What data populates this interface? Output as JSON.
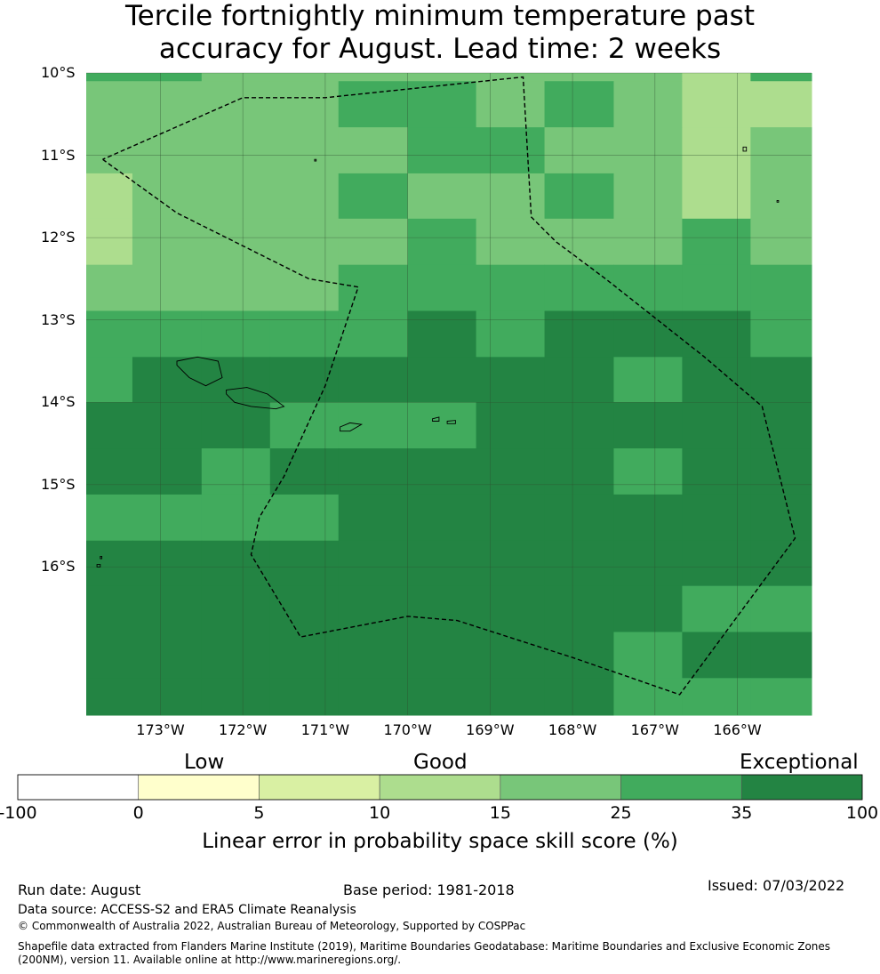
{
  "title": {
    "line1": "Tercile fortnightly minimum temperature past",
    "line2": "accuracy for August. Lead time: 2 weeks"
  },
  "map": {
    "lon_range": [
      -173.9,
      -165.1
    ],
    "lat_range": [
      -17.8,
      -10.0
    ],
    "lat_ticks": [
      {
        "value": -10,
        "label": "10°S"
      },
      {
        "value": -11,
        "label": "11°S"
      },
      {
        "value": -12,
        "label": "12°S"
      },
      {
        "value": -13,
        "label": "13°S"
      },
      {
        "value": -14,
        "label": "14°S"
      },
      {
        "value": -15,
        "label": "15°S"
      },
      {
        "value": -16,
        "label": "16°S"
      }
    ],
    "lon_ticks": [
      {
        "value": -173,
        "label": "173°W"
      },
      {
        "value": -172,
        "label": "172°W"
      },
      {
        "value": -171,
        "label": "171°W"
      },
      {
        "value": -170,
        "label": "170°W"
      },
      {
        "value": -169,
        "label": "169°W"
      },
      {
        "value": -168,
        "label": "168°W"
      },
      {
        "value": -167,
        "label": "167°W"
      },
      {
        "value": -166,
        "label": "166°W"
      }
    ],
    "grid_lines": true,
    "cell_lon_edges": [
      -173.9,
      -173.34,
      -172.5,
      -171.67,
      -170.84,
      -170.0,
      -169.17,
      -168.34,
      -167.5,
      -166.67,
      -165.84,
      -165.1
    ],
    "cell_lat_edges": [
      -10.0,
      -10.1,
      -10.66,
      -11.22,
      -11.77,
      -12.33,
      -12.89,
      -13.45,
      -14.0,
      -14.56,
      -15.12,
      -15.68,
      -16.23,
      -16.79,
      -17.35,
      -17.8
    ],
    "skill_grid": [
      [
        25,
        25,
        15,
        15,
        15,
        15,
        15,
        15,
        15,
        10,
        25
      ],
      [
        15,
        15,
        15,
        15,
        25,
        25,
        15,
        25,
        15,
        10,
        10
      ],
      [
        15,
        15,
        15,
        15,
        15,
        25,
        25,
        15,
        15,
        10,
        15
      ],
      [
        10,
        15,
        15,
        15,
        25,
        15,
        15,
        25,
        15,
        10,
        15
      ],
      [
        10,
        15,
        15,
        15,
        15,
        25,
        15,
        15,
        15,
        25,
        15
      ],
      [
        15,
        15,
        15,
        15,
        25,
        25,
        25,
        25,
        25,
        25,
        25
      ],
      [
        25,
        25,
        25,
        25,
        25,
        35,
        25,
        35,
        35,
        35,
        25
      ],
      [
        25,
        35,
        35,
        35,
        35,
        35,
        35,
        35,
        25,
        35,
        35
      ],
      [
        35,
        35,
        35,
        25,
        25,
        25,
        35,
        35,
        35,
        35,
        35
      ],
      [
        35,
        35,
        25,
        35,
        35,
        35,
        35,
        35,
        25,
        35,
        35
      ],
      [
        25,
        25,
        25,
        25,
        35,
        35,
        35,
        35,
        35,
        35,
        35
      ],
      [
        35,
        35,
        35,
        35,
        35,
        35,
        35,
        35,
        35,
        35,
        35
      ],
      [
        35,
        35,
        35,
        35,
        35,
        35,
        35,
        35,
        35,
        25,
        25
      ],
      [
        35,
        35,
        35,
        35,
        35,
        35,
        35,
        35,
        25,
        35,
        35
      ],
      [
        35,
        35,
        35,
        35,
        35,
        35,
        35,
        35,
        25,
        25,
        25
      ]
    ],
    "eez_boundary": [
      [
        -173.7,
        -11.05
      ],
      [
        -172.8,
        -11.7
      ],
      [
        -171.2,
        -12.5
      ],
      [
        -170.6,
        -12.6
      ],
      [
        -171.0,
        -13.8
      ],
      [
        -171.5,
        -14.9
      ],
      [
        -171.8,
        -15.4
      ],
      [
        -171.9,
        -15.85
      ],
      [
        -171.3,
        -16.85
      ],
      [
        -170.0,
        -16.6
      ],
      [
        -169.4,
        -16.65
      ],
      [
        -168.0,
        -17.1
      ],
      [
        -166.7,
        -17.55
      ],
      [
        -165.3,
        -15.65
      ],
      [
        -165.7,
        -14.05
      ],
      [
        -166.4,
        -13.45
      ],
      [
        -167.6,
        -12.5
      ],
      [
        -168.2,
        -12.05
      ],
      [
        -168.5,
        -11.75
      ],
      [
        -168.6,
        -10.05
      ],
      [
        -171.0,
        -10.3
      ],
      [
        -172.0,
        -10.3
      ],
      [
        -173.7,
        -11.05
      ]
    ],
    "islands": [
      [
        [
          -172.8,
          -13.5
        ],
        [
          -172.55,
          -13.45
        ],
        [
          -172.3,
          -13.5
        ],
        [
          -172.25,
          -13.7
        ],
        [
          -172.45,
          -13.8
        ],
        [
          -172.65,
          -13.7
        ],
        [
          -172.8,
          -13.55
        ]
      ],
      [
        [
          -172.2,
          -13.85
        ],
        [
          -171.95,
          -13.82
        ],
        [
          -171.7,
          -13.9
        ],
        [
          -171.5,
          -14.05
        ],
        [
          -171.6,
          -14.08
        ],
        [
          -171.9,
          -14.05
        ],
        [
          -172.1,
          -14.0
        ],
        [
          -172.2,
          -13.9
        ]
      ],
      [
        [
          -170.82,
          -14.3
        ],
        [
          -170.7,
          -14.25
        ],
        [
          -170.56,
          -14.27
        ],
        [
          -170.7,
          -14.35
        ],
        [
          -170.82,
          -14.35
        ]
      ],
      [
        [
          -169.7,
          -14.2
        ],
        [
          -169.62,
          -14.18
        ],
        [
          -169.62,
          -14.23
        ],
        [
          -169.7,
          -14.23
        ]
      ],
      [
        [
          -169.52,
          -14.23
        ],
        [
          -169.42,
          -14.22
        ],
        [
          -169.42,
          -14.26
        ],
        [
          -169.52,
          -14.26
        ]
      ],
      [
        [
          -171.13,
          -11.05
        ],
        [
          -171.11,
          -11.05
        ],
        [
          -171.11,
          -11.07
        ],
        [
          -171.13,
          -11.07
        ]
      ],
      [
        [
          -165.93,
          -10.9
        ],
        [
          -165.89,
          -10.9
        ],
        [
          -165.89,
          -10.95
        ],
        [
          -165.93,
          -10.95
        ]
      ],
      [
        [
          -165.52,
          -11.55
        ],
        [
          -165.5,
          -11.55
        ],
        [
          -165.5,
          -11.57
        ],
        [
          -165.52,
          -11.57
        ]
      ],
      [
        [
          -173.73,
          -15.87
        ],
        [
          -173.71,
          -15.87
        ],
        [
          -173.71,
          -15.9
        ],
        [
          -173.73,
          -15.9
        ]
      ],
      [
        [
          -173.77,
          -15.97
        ],
        [
          -173.73,
          -15.97
        ],
        [
          -173.73,
          -16.0
        ],
        [
          -173.77,
          -16.0
        ]
      ]
    ]
  },
  "colorbar": {
    "categories": [
      "Low",
      "Good",
      "Exceptional"
    ],
    "bounds": [
      -100,
      0,
      5,
      10,
      15,
      25,
      35,
      100
    ],
    "tick_labels": [
      "-100",
      "0",
      "5",
      "10",
      "15",
      "25",
      "35",
      "100"
    ],
    "colors": [
      "#ffffff",
      "#ffffcc",
      "#d9f0a3",
      "#addd8e",
      "#78c679",
      "#41ab5d",
      "#238443"
    ],
    "label": "Linear error in probability space skill score (%)"
  },
  "footer": {
    "run_date": "Run date: August",
    "base_period": "Base period: 1981-2018",
    "issued": "Issued: 07/03/2022",
    "data_source": "Data source: ACCESS-S2 and ERA5 Climate Reanalysis",
    "copyright": "© Commonwealth of Australia 2022, Australian Bureau of Meteorology, Supported by COSPPac",
    "shapefile_line1": "Shapefile data extracted from Flanders Marine Institute (2019), Maritime Boundaries Geodatabase: Maritime Boundaries and Exclusive Economic Zones",
    "shapefile_line2": "(200NM), version 11. Available online at http://www.marineregions.org/."
  }
}
